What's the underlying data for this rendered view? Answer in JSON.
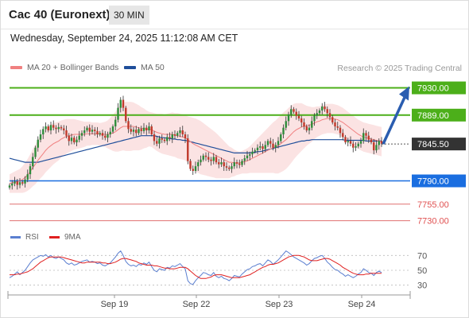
{
  "header": {
    "title": "Cac 40 (Euronext)",
    "timeframe": "30 MIN"
  },
  "timestamp": "Wednesday, September 24, 2025 11:12:08 AM CET",
  "legend": {
    "ma20_label": "MA 20 + Bollinger Bands",
    "ma50_label": "MA 50",
    "ma20_color": "#f08080",
    "ma50_color": "#1f4e9a",
    "credit": "Research © 2025 Trading Central"
  },
  "rsi_legend": {
    "rsi_label": "RSI",
    "ma_label": "9MA",
    "rsi_color": "#5b7fd0",
    "ma_color": "#e02020"
  },
  "colors": {
    "up": "#2e8b3a",
    "down": "#c0392b",
    "resistance": "#4caf1a",
    "support": "#1a6ee0",
    "target": "#e07070",
    "arrow": "#2a5db0",
    "current": "#333333"
  },
  "chart_data": {
    "type": "candlestick",
    "price_panel": {
      "ylim": [
        7720,
        7945
      ],
      "levels": [
        {
          "label": "7930.00",
          "value": 7930,
          "kind": "resistance"
        },
        {
          "label": "7889.00",
          "value": 7889,
          "kind": "resistance"
        },
        {
          "label": "7845.50",
          "value": 7845.5,
          "kind": "current"
        },
        {
          "label": "7790.00",
          "value": 7790,
          "kind": "support"
        },
        {
          "label": "7755.00",
          "value": 7755,
          "kind": "target"
        },
        {
          "label": "7730.00",
          "value": 7730,
          "kind": "target"
        }
      ],
      "closes": [
        7783,
        7786,
        7789,
        7784,
        7788,
        7786,
        7792,
        7800,
        7812,
        7826,
        7840,
        7852,
        7860,
        7868,
        7872,
        7866,
        7874,
        7870,
        7868,
        7871,
        7869,
        7866,
        7858,
        7850,
        7855,
        7848,
        7852,
        7858,
        7862,
        7866,
        7870,
        7864,
        7867,
        7865,
        7860,
        7862,
        7858,
        7855,
        7860,
        7864,
        7872,
        7882,
        7900,
        7912,
        7900,
        7880,
        7868,
        7864,
        7867,
        7862,
        7868,
        7865,
        7870,
        7866,
        7872,
        7860,
        7850,
        7846,
        7854,
        7852,
        7850,
        7856,
        7854,
        7860,
        7858,
        7862,
        7866,
        7860,
        7854,
        7820,
        7808,
        7805,
        7812,
        7818,
        7822,
        7828,
        7826,
        7822,
        7820,
        7826,
        7818,
        7815,
        7818,
        7812,
        7810,
        7808,
        7812,
        7818,
        7816,
        7814,
        7820,
        7824,
        7828,
        7830,
        7834,
        7836,
        7840,
        7842,
        7838,
        7844,
        7850,
        7846,
        7840,
        7844,
        7850,
        7860,
        7870,
        7880,
        7890,
        7898,
        7894,
        7888,
        7884,
        7878,
        7872,
        7866,
        7870,
        7880,
        7888,
        7892,
        7896,
        7902,
        7898,
        7892,
        7886,
        7878,
        7872,
        7870,
        7862,
        7856,
        7848,
        7850,
        7846,
        7840,
        7842,
        7846,
        7850,
        7862,
        7858,
        7852,
        7848,
        7836,
        7844,
        7850,
        7846
      ],
      "ma20": [
        7786,
        7787,
        7788,
        7789,
        7790,
        7792,
        7795,
        7799,
        7804,
        7810,
        7815,
        7821,
        7826,
        7831,
        7836,
        7840,
        7843,
        7846,
        7848,
        7850,
        7853,
        7855,
        7857,
        7858,
        7859,
        7860,
        7860,
        7860,
        7860,
        7860,
        7861,
        7861,
        7861,
        7861,
        7861,
        7860,
        7860,
        7860,
        7860,
        7861,
        7862,
        7864,
        7867,
        7870,
        7872,
        7872,
        7872,
        7872,
        7872,
        7871,
        7870,
        7869,
        7869,
        7868,
        7868,
        7867,
        7865,
        7863,
        7862,
        7861,
        7860,
        7860,
        7860,
        7860,
        7859,
        7858,
        7857,
        7856,
        7855,
        7852,
        7849,
        7846,
        7844,
        7842,
        7840,
        7838,
        7836,
        7834,
        7832,
        7830,
        7828,
        7826,
        7824,
        7822,
        7820,
        7818,
        7818,
        7817,
        7817,
        7817,
        7818,
        7819,
        7820,
        7822,
        7824,
        7826,
        7828,
        7830,
        7832,
        7834,
        7836,
        7838,
        7840,
        7841,
        7843,
        7846,
        7849,
        7852,
        7856,
        7860,
        7864,
        7867,
        7869,
        7871,
        7872,
        7873,
        7874,
        7875,
        7877,
        7879,
        7880,
        7882,
        7883,
        7884,
        7884,
        7884,
        7883,
        7882,
        7880,
        7878,
        7875,
        7872,
        7869,
        7866,
        7863,
        7860,
        7858,
        7856,
        7855,
        7854,
        7853,
        7852,
        7851,
        7850,
        7849
      ],
      "ma20_band_halfwidth": [
        14,
        15,
        16,
        17,
        18,
        20,
        22,
        24,
        26,
        28,
        30,
        31,
        32,
        33,
        33,
        33,
        32,
        31,
        30,
        29,
        28,
        27,
        26,
        25,
        24,
        23,
        22,
        21,
        20,
        19,
        18,
        18,
        17,
        17,
        17,
        17,
        18,
        19,
        21,
        24,
        27,
        30,
        33,
        35,
        36,
        37,
        37,
        37,
        36,
        35,
        34,
        32,
        30,
        28,
        26,
        26,
        27,
        28,
        29,
        30,
        30,
        31,
        32,
        33,
        33,
        34,
        34,
        34,
        34,
        35,
        37,
        39,
        40,
        40,
        40,
        39,
        38,
        37,
        36,
        35,
        34,
        32,
        30,
        28,
        26,
        24,
        22,
        20,
        18,
        17,
        17,
        18,
        19,
        20,
        22,
        24,
        26,
        28,
        30,
        32,
        34,
        36,
        38,
        40,
        42,
        43,
        44,
        44,
        44,
        43,
        42,
        40,
        38,
        36,
        33,
        30,
        28,
        26,
        24,
        23,
        22,
        22,
        22,
        22,
        22,
        22,
        22,
        22,
        22,
        22,
        22,
        22,
        22,
        22,
        22,
        22,
        22,
        22,
        22,
        22,
        22,
        22,
        22,
        22,
        22
      ],
      "ma50": [
        7824,
        7823,
        7822,
        7821,
        7820,
        7819,
        7818,
        7818,
        7818,
        7818,
        7818,
        7818,
        7819,
        7820,
        7821,
        7822,
        7823,
        7824,
        7825,
        7826,
        7827,
        7828,
        7829,
        7830,
        7831,
        7832,
        7833,
        7834,
        7835,
        7836,
        7837,
        7838,
        7839,
        7840,
        7841,
        7842,
        7843,
        7844,
        7845,
        7846,
        7847,
        7848,
        7849,
        7850,
        7851,
        7852,
        7853,
        7854,
        7855,
        7856,
        7857,
        7858,
        7858,
        7858,
        7858,
        7858,
        7858,
        7857,
        7856,
        7855,
        7855,
        7854,
        7854,
        7853,
        7853,
        7852,
        7852,
        7851,
        7851,
        7850,
        7849,
        7848,
        7847,
        7846,
        7845,
        7844,
        7843,
        7842,
        7841,
        7840,
        7839,
        7838,
        7837,
        7836,
        7835,
        7834,
        7833,
        7832,
        7832,
        7832,
        7832,
        7832,
        7832,
        7832,
        7833,
        7833,
        7834,
        7834,
        7835,
        7836,
        7837,
        7838,
        7839,
        7840,
        7841,
        7842,
        7843,
        7844,
        7845,
        7846,
        7847,
        7848,
        7849,
        7850,
        7850,
        7851,
        7851,
        7852,
        7852,
        7852,
        7852,
        7852,
        7852,
        7852,
        7852,
        7852,
        7852,
        7852,
        7852,
        7852,
        7851,
        7851,
        7851,
        7851,
        7851,
        7851,
        7851,
        7851,
        7850,
        7850,
        7850,
        7850,
        7850,
        7850,
        7850
      ]
    },
    "rsi_panel": {
      "ylim": [
        20,
        80
      ],
      "ticks": [
        "70",
        "50",
        "30"
      ],
      "rsi": [
        40,
        42,
        45,
        48,
        44,
        47,
        50,
        55,
        60,
        64,
        66,
        68,
        70,
        69,
        71,
        68,
        70,
        67,
        66,
        68,
        66,
        64,
        60,
        58,
        60,
        57,
        58,
        60,
        62,
        63,
        64,
        61,
        62,
        61,
        59,
        60,
        57,
        56,
        58,
        60,
        64,
        68,
        73,
        76,
        70,
        62,
        58,
        56,
        57,
        55,
        58,
        57,
        60,
        58,
        61,
        55,
        50,
        48,
        52,
        51,
        50,
        54,
        53,
        56,
        55,
        57,
        59,
        55,
        52,
        36,
        32,
        31,
        36,
        40,
        43,
        47,
        46,
        44,
        43,
        47,
        42,
        40,
        42,
        39,
        38,
        36,
        39,
        43,
        42,
        41,
        45,
        48,
        51,
        52,
        55,
        56,
        58,
        59,
        56,
        60,
        64,
        62,
        58,
        61,
        64,
        68,
        72,
        76,
        74,
        71,
        68,
        66,
        64,
        62,
        60,
        57,
        59,
        63,
        66,
        67,
        69,
        70,
        66,
        61,
        58,
        54,
        51,
        50,
        47,
        45,
        42,
        44,
        42,
        40,
        42,
        45,
        47,
        52,
        50,
        47,
        46,
        43,
        47,
        49,
        47
      ],
      "ma9": [
        44,
        44,
        44,
        45,
        45,
        46,
        47,
        48,
        50,
        52,
        55,
        58,
        61,
        63,
        65,
        67,
        68,
        68,
        68,
        68,
        68,
        67,
        66,
        65,
        64,
        63,
        62,
        61,
        60,
        60,
        61,
        61,
        61,
        61,
        61,
        61,
        60,
        60,
        59,
        59,
        60,
        61,
        63,
        65,
        66,
        66,
        65,
        64,
        63,
        62,
        60,
        59,
        58,
        57,
        57,
        57,
        56,
        56,
        55,
        54,
        53,
        53,
        52,
        52,
        52,
        53,
        54,
        54,
        54,
        52,
        49,
        46,
        43,
        41,
        39,
        39,
        39,
        40,
        41,
        43,
        44,
        44,
        44,
        43,
        42,
        41,
        40,
        40,
        40,
        40,
        41,
        42,
        43,
        44,
        46,
        48,
        50,
        52,
        54,
        55,
        57,
        58,
        58,
        59,
        60,
        62,
        64,
        66,
        68,
        69,
        70,
        70,
        70,
        69,
        68,
        66,
        64,
        63,
        63,
        63,
        64,
        65,
        66,
        66,
        65,
        63,
        61,
        59,
        57,
        54,
        52,
        50,
        48,
        46,
        45,
        44,
        44,
        44,
        45,
        45,
        46,
        46,
        46,
        46,
        46
      ]
    },
    "x_labels": [
      "Sep 19",
      "Sep 22",
      "Sep 23",
      "Sep 24"
    ],
    "x_label_index": [
      30,
      57,
      84,
      111
    ],
    "forecast_arrow": {
      "from": 7845.5,
      "to": 7930
    }
  }
}
